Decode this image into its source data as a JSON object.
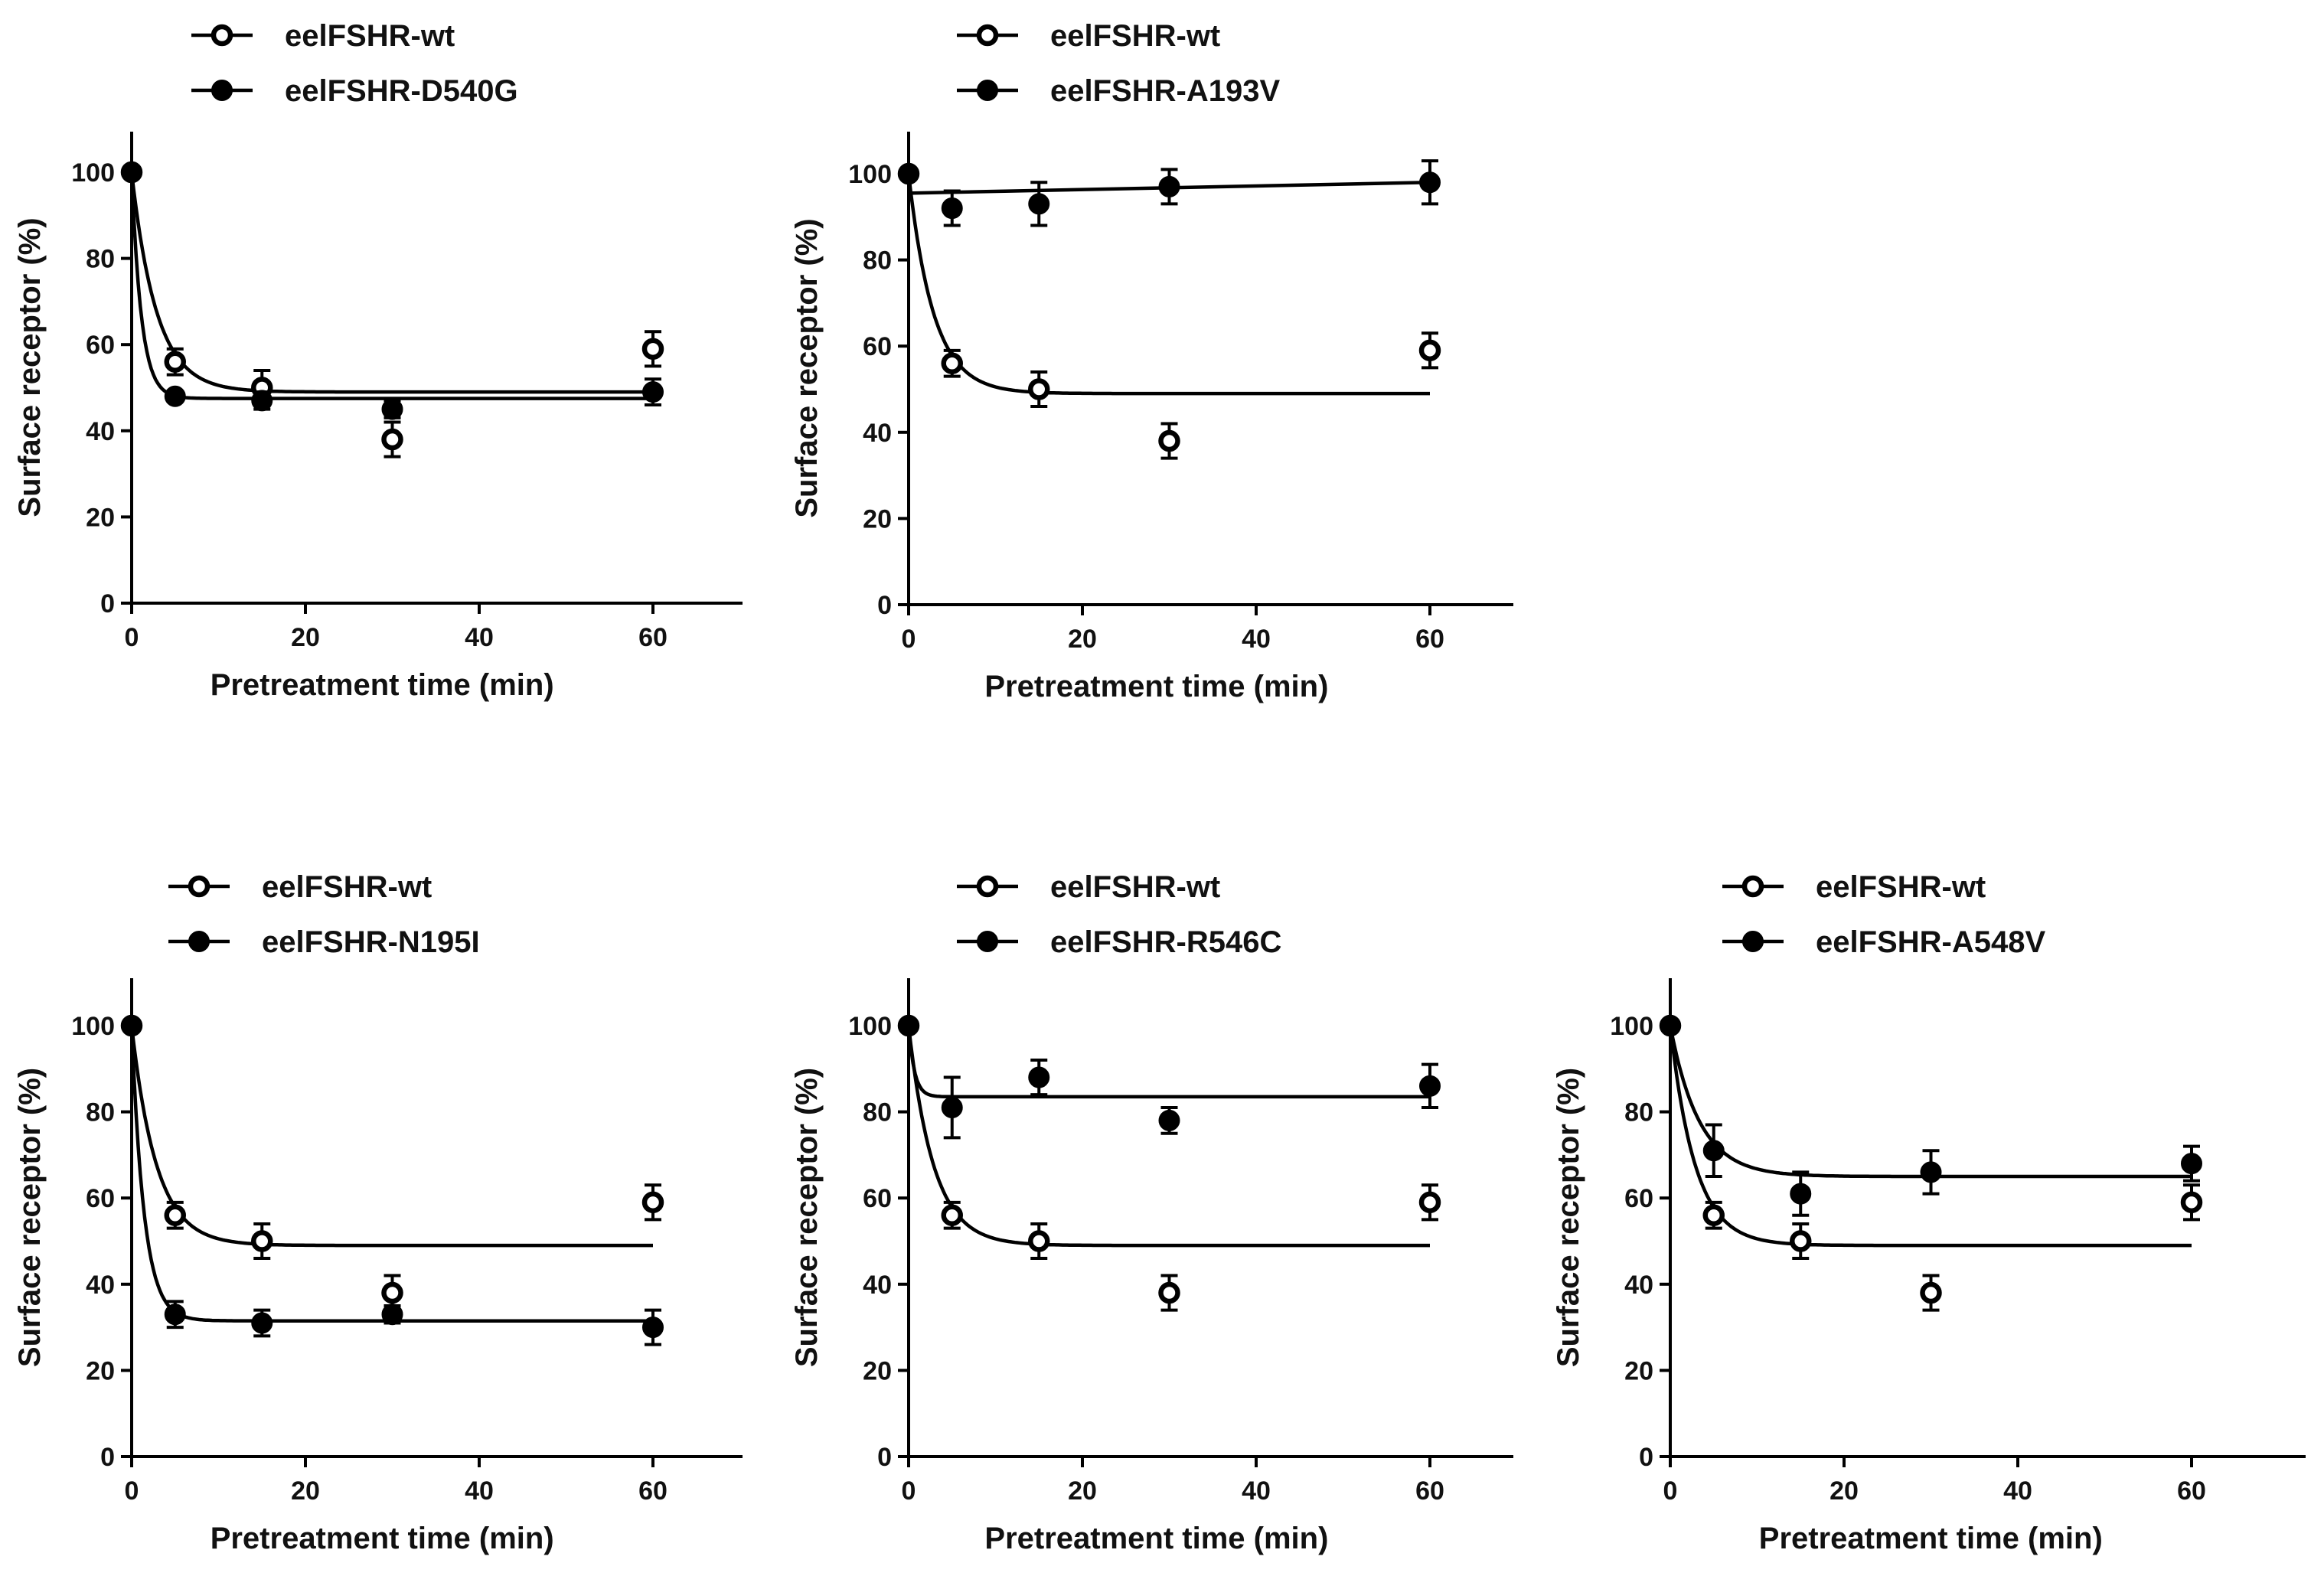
{
  "chart_data": [
    {
      "type": "scatter",
      "panel": "top-left",
      "xlabel": "Pretreatment time (min)",
      "ylabel": "Surface receptor (%)",
      "xlim": [
        0,
        70
      ],
      "ylim": [
        0,
        110
      ],
      "xticks": [
        "0",
        "20",
        "40",
        "60"
      ],
      "yticks": [
        "0",
        "20",
        "40",
        "60",
        "80",
        "100"
      ],
      "legend_position": "top-left",
      "series": [
        {
          "name": "eelFSHR-wt",
          "marker": "open-circle",
          "x": [
            0,
            5,
            15,
            30,
            60
          ],
          "y": [
            100,
            56,
            50,
            38,
            59
          ],
          "err": [
            0,
            3,
            4,
            4,
            4
          ],
          "fit": {
            "plateau": 49,
            "k": 0.35
          }
        },
        {
          "name": "eelFSHR-D540G",
          "marker": "filled-circle",
          "x": [
            0,
            5,
            15,
            30,
            60
          ],
          "y": [
            100,
            48,
            47,
            45,
            49
          ],
          "err": [
            0,
            1,
            2,
            2,
            3
          ],
          "fit": {
            "plateau": 47.5,
            "k": 0.9
          }
        }
      ]
    },
    {
      "type": "scatter",
      "panel": "top-middle",
      "xlabel": "Pretreatment time (min)",
      "ylabel": "Surface receptor (%)",
      "xlim": [
        0,
        70
      ],
      "ylim": [
        0,
        110
      ],
      "xticks": [
        "0",
        "20",
        "40",
        "60"
      ],
      "yticks": [
        "0",
        "20",
        "40",
        "60",
        "80",
        "100"
      ],
      "legend_position": "top-left",
      "series": [
        {
          "name": "eelFSHR-wt",
          "marker": "open-circle",
          "x": [
            0,
            5,
            15,
            30,
            60
          ],
          "y": [
            100,
            56,
            50,
            38,
            59
          ],
          "err": [
            0,
            3,
            4,
            4,
            4
          ],
          "fit": {
            "plateau": 49,
            "k": 0.35
          }
        },
        {
          "name": "eelFSHR-A193V",
          "marker": "filled-circle",
          "x": [
            0,
            5,
            15,
            30,
            60
          ],
          "y": [
            100,
            92,
            93,
            97,
            98
          ],
          "err": [
            0,
            4,
            5,
            4,
            5
          ],
          "fit": {
            "line": [
              95.5,
              98
            ]
          }
        }
      ]
    },
    {
      "type": "scatter",
      "panel": "bottom-left",
      "xlabel": "Pretreatment time (min)",
      "ylabel": "Surface receptor (%)",
      "xlim": [
        0,
        70
      ],
      "ylim": [
        0,
        110
      ],
      "xticks": [
        "0",
        "20",
        "40",
        "60"
      ],
      "yticks": [
        "0",
        "20",
        "40",
        "60",
        "80",
        "100"
      ],
      "legend_position": "top-left",
      "series": [
        {
          "name": "eelFSHR-wt",
          "marker": "open-circle",
          "x": [
            0,
            5,
            15,
            30,
            60
          ],
          "y": [
            100,
            56,
            50,
            38,
            59
          ],
          "err": [
            0,
            3,
            4,
            4,
            4
          ],
          "fit": {
            "plateau": 49,
            "k": 0.35
          }
        },
        {
          "name": "eelFSHR-N195I",
          "marker": "filled-circle",
          "x": [
            0,
            5,
            15,
            30,
            60
          ],
          "y": [
            100,
            33,
            31,
            33,
            30
          ],
          "err": [
            0,
            3,
            3,
            2,
            4
          ],
          "fit": {
            "plateau": 31.5,
            "k": 0.7
          }
        }
      ]
    },
    {
      "type": "scatter",
      "panel": "bottom-middle",
      "xlabel": "Pretreatment time (min)",
      "ylabel": "Surface receptor (%)",
      "xlim": [
        0,
        70
      ],
      "ylim": [
        0,
        110
      ],
      "xticks": [
        "0",
        "20",
        "40",
        "60"
      ],
      "yticks": [
        "0",
        "20",
        "40",
        "60",
        "80",
        "100"
      ],
      "legend_position": "top-left",
      "series": [
        {
          "name": "eelFSHR-wt",
          "marker": "open-circle",
          "x": [
            0,
            5,
            15,
            30,
            60
          ],
          "y": [
            100,
            56,
            50,
            38,
            59
          ],
          "err": [
            0,
            3,
            4,
            4,
            4
          ],
          "fit": {
            "plateau": 49,
            "k": 0.35
          }
        },
        {
          "name": "eelFSHR-R546C",
          "marker": "filled-circle",
          "x": [
            0,
            5,
            15,
            30,
            60
          ],
          "y": [
            100,
            81,
            88,
            78,
            86
          ],
          "err": [
            0,
            7,
            4,
            3,
            5
          ],
          "fit": {
            "plateau": 83.5,
            "k": 1.5
          }
        }
      ]
    },
    {
      "type": "scatter",
      "panel": "bottom-right",
      "xlabel": "Pretreatment time (min)",
      "ylabel": "Surface receptor (%)",
      "xlim": [
        0,
        70
      ],
      "ylim": [
        0,
        110
      ],
      "xticks": [
        "0",
        "20",
        "40",
        "60"
      ],
      "yticks": [
        "0",
        "20",
        "40",
        "60",
        "80",
        "100"
      ],
      "legend_position": "top-left",
      "series": [
        {
          "name": "eelFSHR-wt",
          "marker": "open-circle",
          "x": [
            0,
            5,
            15,
            30,
            60
          ],
          "y": [
            100,
            56,
            50,
            38,
            59
          ],
          "err": [
            0,
            3,
            4,
            4,
            4
          ],
          "fit": {
            "plateau": 49,
            "k": 0.35
          }
        },
        {
          "name": "eelFSHR-A548V",
          "marker": "filled-circle",
          "x": [
            0,
            5,
            15,
            30,
            60
          ],
          "y": [
            100,
            71,
            61,
            66,
            68
          ],
          "err": [
            0,
            6,
            5,
            5,
            4
          ],
          "fit": {
            "plateau": 65,
            "k": 0.3
          }
        }
      ]
    }
  ]
}
